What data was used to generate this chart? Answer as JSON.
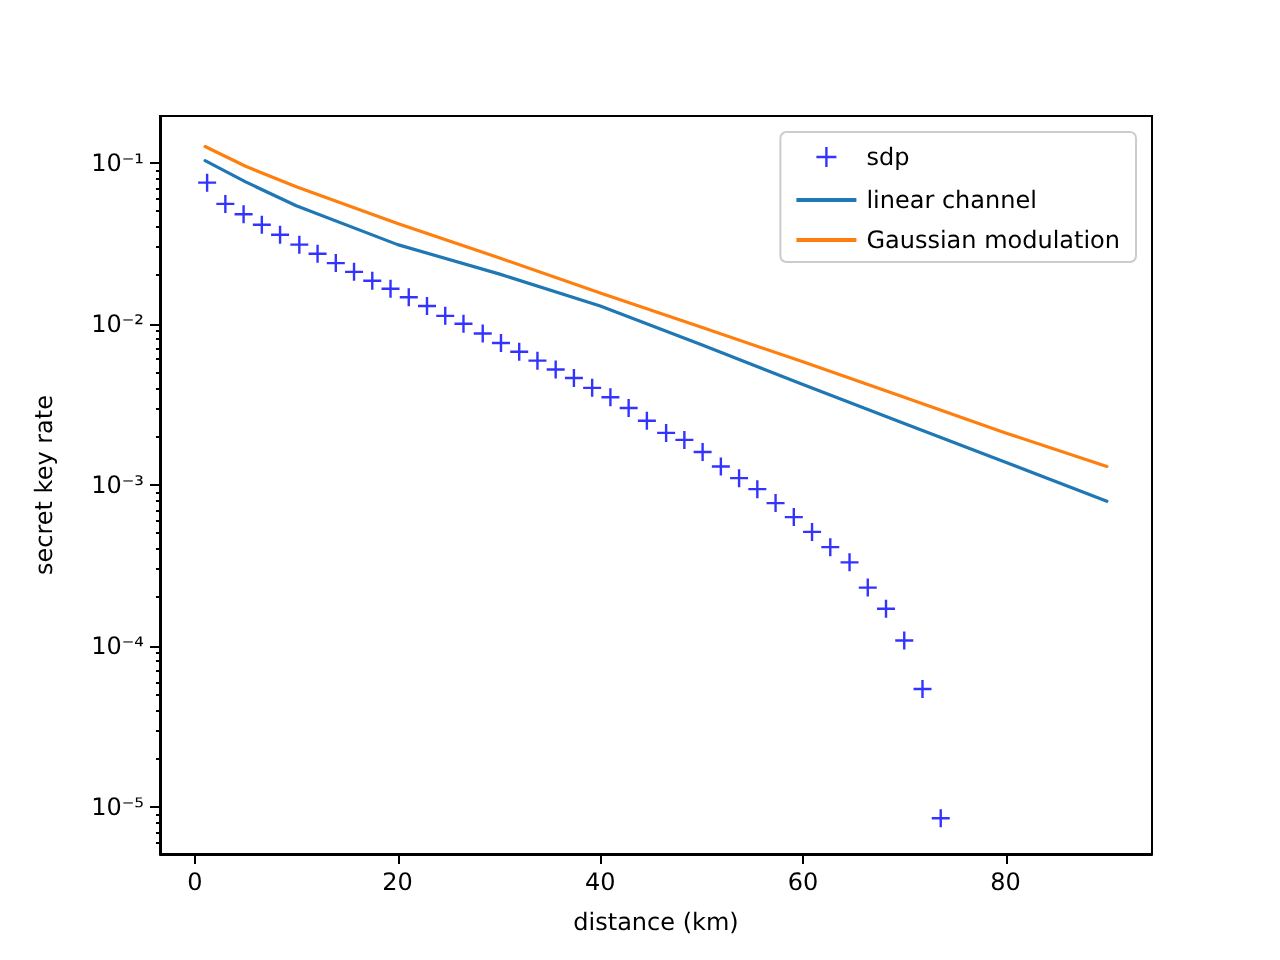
{
  "chart_data": {
    "type": "line",
    "xlabel": "distance (km)",
    "ylabel": "secret key rate",
    "log": "y",
    "legend": "top right",
    "xlim": [
      -3.45,
      94.45
    ],
    "xticks": [
      0,
      20,
      40,
      60,
      80
    ],
    "ylim": [
      5.1e-06,
      0.195
    ],
    "yticks": [
      {
        "value": 1e-05,
        "label": "10⁻⁵"
      },
      {
        "value": 0.0001,
        "label": "10⁻⁴"
      },
      {
        "value": 0.001,
        "label": "10⁻³"
      },
      {
        "value": 0.01,
        "label": "10⁻²"
      },
      {
        "value": 0.1,
        "label": "10⁻¹"
      }
    ],
    "series": [
      {
        "name": "sdp",
        "type": "scatter",
        "marker": "cross",
        "color": "#0000ff",
        "x": [
          1.2,
          3.0,
          4.8,
          6.6,
          8.4,
          10.3,
          12.1,
          13.9,
          15.7,
          17.5,
          19.3,
          21.1,
          22.9,
          24.7,
          26.5,
          28.4,
          30.2,
          32.0,
          33.8,
          35.6,
          37.4,
          39.2,
          41.0,
          42.8,
          44.6,
          46.5,
          48.3,
          50.1,
          51.9,
          53.7,
          55.5,
          57.3,
          59.1,
          60.9,
          62.7,
          64.6,
          66.4,
          68.2,
          70.0,
          71.8,
          73.6
        ],
        "values": [
          0.0752,
          0.0555,
          0.0479,
          0.0412,
          0.0357,
          0.031,
          0.0272,
          0.0238,
          0.021,
          0.0185,
          0.0165,
          0.0146,
          0.0129,
          0.0112,
          0.01,
          0.0087,
          0.0076,
          0.0067,
          0.0059,
          0.0052,
          0.0046,
          0.004,
          0.0035,
          0.003,
          0.0025,
          0.0021,
          0.0019,
          0.0016,
          0.0013,
          0.0011,
          0.00094,
          0.00077,
          0.00063,
          0.00051,
          0.00041,
          0.00033,
          0.00023,
          0.00017,
          0.000108,
          5.4e-05,
          8.5e-06
        ]
      },
      {
        "name": "linear channel",
        "color": "#1f77b4",
        "x": [
          1,
          5,
          10,
          20,
          30,
          40,
          50,
          60,
          70,
          80,
          90
        ],
        "values": [
          0.103,
          0.076,
          0.054,
          0.031,
          0.0204,
          0.0129,
          0.0074,
          0.0042,
          0.0024,
          0.00138,
          0.00079
        ]
      },
      {
        "name": "Gaussian modulation",
        "color": "#ff7f0e",
        "x": [
          1,
          5,
          10,
          20,
          30,
          40,
          50,
          60,
          70,
          80,
          90
        ],
        "values": [
          0.126,
          0.095,
          0.071,
          0.042,
          0.0257,
          0.0155,
          0.0095,
          0.0058,
          0.0035,
          0.0021,
          0.0013
        ]
      }
    ]
  }
}
